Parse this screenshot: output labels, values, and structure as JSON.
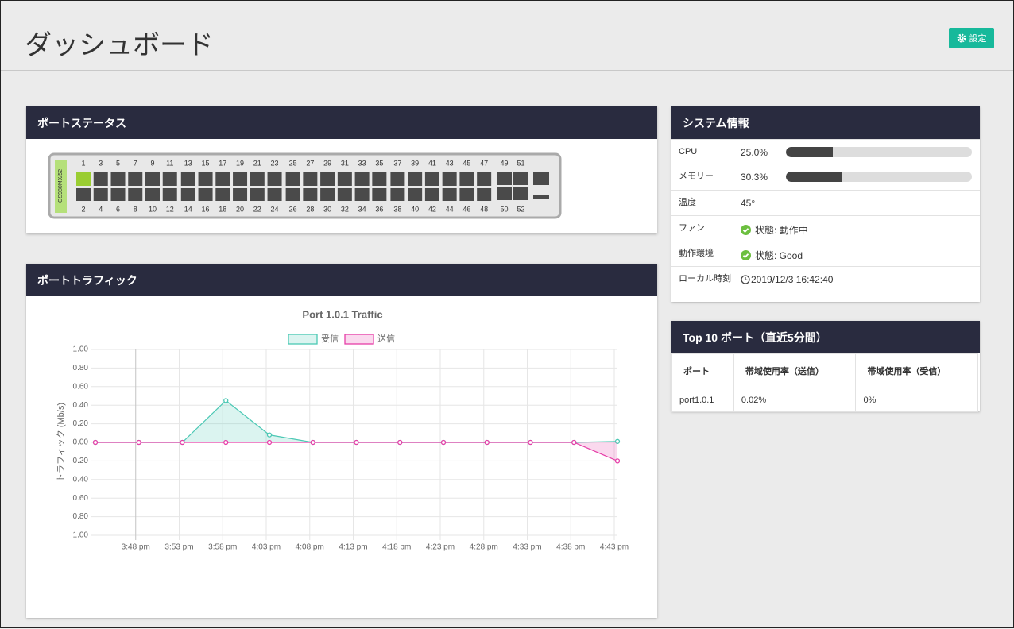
{
  "header": {
    "title": "ダッシュボード",
    "settings_button": "設定"
  },
  "port_status": {
    "title": "ポートステータス",
    "device_label": "GS980MX/52",
    "top_labels": [
      "1",
      "3",
      "5",
      "7",
      "9",
      "11",
      "13",
      "15",
      "17",
      "19",
      "21",
      "23",
      "25",
      "27",
      "29",
      "31",
      "33",
      "35",
      "37",
      "39",
      "41",
      "43",
      "45",
      "47",
      "49",
      "51"
    ],
    "bottom_labels": [
      "2",
      "4",
      "6",
      "8",
      "10",
      "12",
      "14",
      "16",
      "18",
      "20",
      "22",
      "24",
      "26",
      "28",
      "30",
      "32",
      "34",
      "36",
      "38",
      "40",
      "42",
      "44",
      "46",
      "48",
      "50",
      "52"
    ]
  },
  "port_traffic": {
    "title": "ポートトラフィック"
  },
  "chart_data": {
    "type": "line",
    "title": "Port 1.0.1 Traffic",
    "y_label": "トラフィック (Mb/s)",
    "categories": [
      null,
      "3:48 pm",
      "3:53 pm",
      "3:58 pm",
      "4:03 pm",
      "4:08 pm",
      "4:13 pm",
      "4:18 pm",
      "4:23 pm",
      "4:28 pm",
      "4:33 pm",
      "4:38 pm",
      "4:43 pm"
    ],
    "series": [
      {
        "name": "受信",
        "color": "#4bc8b4",
        "values": [
          0,
          0,
          0,
          0.45,
          0.08,
          0,
          0,
          0,
          0,
          0,
          0,
          0,
          0.01
        ]
      },
      {
        "name": "送信",
        "color": "#e63fa8",
        "values": [
          0,
          0,
          0,
          0,
          0,
          0,
          0,
          0,
          0,
          0,
          0,
          0,
          -0.2
        ]
      }
    ],
    "ylim": [
      -1,
      1
    ],
    "yticks": [
      {
        "value": 1,
        "label": "1.00"
      },
      {
        "value": 0.8,
        "label": "0.80"
      },
      {
        "value": 0.6,
        "label": "0.60"
      },
      {
        "value": 0.4,
        "label": "0.40"
      },
      {
        "value": 0.2,
        "label": "0.20"
      },
      {
        "value": 0,
        "label": "0.00"
      },
      {
        "value": -0.2,
        "label": "0.20"
      },
      {
        "value": -0.4,
        "label": "0.40"
      },
      {
        "value": -0.6,
        "label": "0.60"
      },
      {
        "value": -0.8,
        "label": "0.80"
      },
      {
        "value": -1,
        "label": "1.00"
      }
    ],
    "grid": true
  },
  "system_info": {
    "title": "システム情報",
    "rows": [
      {
        "label": "CPU",
        "value": 25.0,
        "value_label": "25.0%"
      },
      {
        "label": "メモリー",
        "value": 30.3,
        "value_label": "30.3%"
      },
      {
        "label": "温度",
        "text": "45°"
      },
      {
        "label": "ファン",
        "text": "状態: 動作中"
      },
      {
        "label": "動作環境",
        "text": "状態: Good"
      },
      {
        "label": "ローカル時刻",
        "text": "2019/12/3 16:42:40"
      }
    ]
  },
  "top10": {
    "title": "Top 10 ポート（直近5分間）",
    "headers": [
      "ポート",
      "帯域使用率（送信）",
      "帯域使用率（受信）"
    ],
    "rows": [
      [
        "port1.0.1",
        "0.02%",
        "0%"
      ]
    ]
  }
}
